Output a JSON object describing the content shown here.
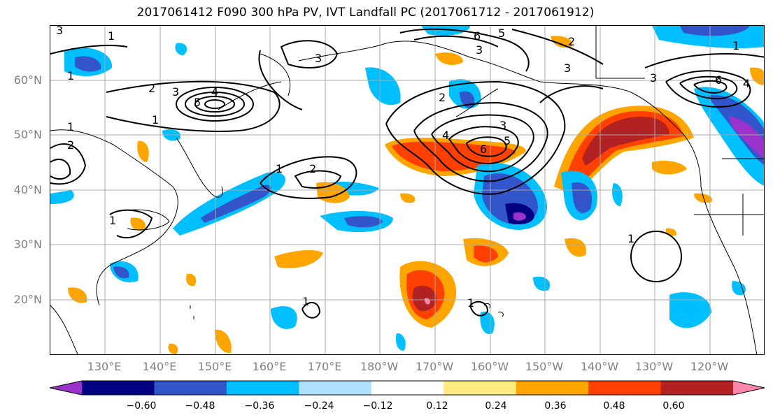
{
  "title": "2017061412 F090 300 hPa PV, IVT Landfall PC (2017061712 - 2017061912)",
  "lat_labels": [
    "60°N",
    "50°N",
    "40°N",
    "30°N",
    "20°N"
  ],
  "lon_labels": [
    "130°E",
    "140°E",
    "150°E",
    "160°E",
    "170°E",
    "180°W",
    "170°W",
    "160°W",
    "150°W",
    "140°W",
    "130°W",
    "120°W"
  ],
  "colorbar": {
    "ticks": [
      "−0.60",
      "−0.48",
      "−0.36",
      "−0.24",
      "−0.12",
      "0.12",
      "0.24",
      "0.36",
      "0.48",
      "0.60"
    ],
    "colors": [
      "#9933cc",
      "#000080",
      "#3355cc",
      "#00bfff",
      "#b0e0ff",
      "#ffffff",
      "#ffeb80",
      "#ffa500",
      "#ff4000",
      "#b22222",
      "#ff88aa"
    ]
  },
  "contour_labels": [
    "3",
    "1",
    "1",
    "2",
    "3",
    "4",
    "5",
    "1",
    "1",
    "2",
    "3",
    "1",
    "2",
    "6",
    "5",
    "3",
    "2",
    "4",
    "3",
    "5",
    "6",
    "2",
    "3",
    "1",
    "3",
    "6",
    "4",
    "1",
    "1",
    "1",
    "1"
  ]
}
